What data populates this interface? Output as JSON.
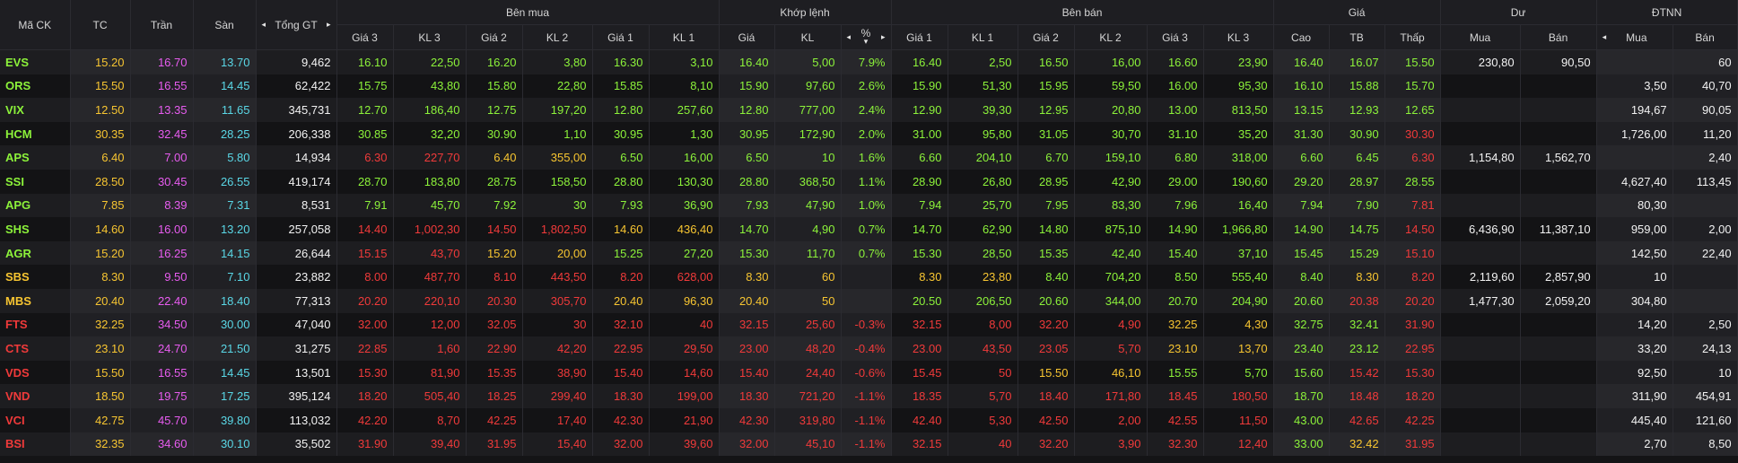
{
  "colors": {
    "up": "#8cf23a",
    "down": "#f03a3a",
    "ref": "#f7c531",
    "ceil": "#e85cf0",
    "floor": "#5ad7e6",
    "text": "#f2f2f2"
  },
  "headers": {
    "sym": "Mã CK",
    "tc": "TC",
    "tran": "Trần",
    "san": "Sàn",
    "tong": "Tổng GT",
    "benmua": "Bên mua",
    "khop": "Khớp lệnh",
    "benban": "Bên bán",
    "gia": "Giá",
    "du": "Dư",
    "dtnn": "ĐTNN",
    "gia3": "Giá 3",
    "kl3": "KL 3",
    "gia2": "Giá 2",
    "kl2": "KL 2",
    "gia1": "Giá 1",
    "kl1": "KL 1",
    "kgia": "Giá",
    "kkl": "KL",
    "kpct": "%",
    "cao": "Cao",
    "tb": "TB",
    "thap": "Thấp",
    "mua": "Mua",
    "ban": "Bán",
    "nmua": "Mua",
    "nban": "Bán",
    "arrow_left": "◂",
    "arrow_right": "▸",
    "arrow_down": "▾"
  },
  "rows": [
    {
      "s": "EVS",
      "tc": "15.20",
      "tran": "16.70",
      "san": "13.70",
      "tong": "9,462",
      "bp3": "16.10",
      "bv3": "22,50",
      "bp2": "16.20",
      "bv2": "3,80",
      "bp1": "16.30",
      "bv1": "3,10",
      "mp": "16.40",
      "mv": "5,00",
      "pct": "7.9%",
      "sp1": "16.40",
      "sv1": "2,50",
      "sp2": "16.50",
      "sv2": "16,00",
      "sp3": "16.60",
      "sv3": "23,90",
      "hi": "16.40",
      "avg": "16.07",
      "lo": "15.50",
      "dm": "230,80",
      "db": "90,50",
      "fm": "",
      "fb": "60",
      "c": {
        "s": "u",
        "bp3": "u",
        "bv3": "u",
        "bp2": "u",
        "bv2": "u",
        "bp1": "u",
        "bv1": "u",
        "mp": "u",
        "mv": "u",
        "pct": "u",
        "sp1": "u",
        "sv1": "u",
        "sp2": "u",
        "sv2": "u",
        "sp3": "u",
        "sv3": "u",
        "hi": "u",
        "avg": "u",
        "lo": "u"
      }
    },
    {
      "s": "ORS",
      "tc": "15.50",
      "tran": "16.55",
      "san": "14.45",
      "tong": "62,422",
      "bp3": "15.75",
      "bv3": "43,80",
      "bp2": "15.80",
      "bv2": "22,80",
      "bp1": "15.85",
      "bv1": "8,10",
      "mp": "15.90",
      "mv": "97,60",
      "pct": "2.6%",
      "sp1": "15.90",
      "sv1": "51,30",
      "sp2": "15.95",
      "sv2": "59,50",
      "sp3": "16.00",
      "sv3": "95,30",
      "hi": "16.10",
      "avg": "15.88",
      "lo": "15.70",
      "dm": "",
      "db": "",
      "fm": "3,50",
      "fb": "40,70",
      "c": {
        "s": "u",
        "bp3": "u",
        "bv3": "u",
        "bp2": "u",
        "bv2": "u",
        "bp1": "u",
        "bv1": "u",
        "mp": "u",
        "mv": "u",
        "pct": "u",
        "sp1": "u",
        "sv1": "u",
        "sp2": "u",
        "sv2": "u",
        "sp3": "u",
        "sv3": "u",
        "hi": "u",
        "avg": "u",
        "lo": "u"
      }
    },
    {
      "s": "VIX",
      "tc": "12.50",
      "tran": "13.35",
      "san": "11.65",
      "tong": "345,731",
      "bp3": "12.70",
      "bv3": "186,40",
      "bp2": "12.75",
      "bv2": "197,20",
      "bp1": "12.80",
      "bv1": "257,60",
      "mp": "12.80",
      "mv": "777,00",
      "pct": "2.4%",
      "sp1": "12.90",
      "sv1": "39,30",
      "sp2": "12.95",
      "sv2": "20,80",
      "sp3": "13.00",
      "sv3": "813,50",
      "hi": "13.15",
      "avg": "12.93",
      "lo": "12.65",
      "dm": "",
      "db": "",
      "fm": "194,67",
      "fb": "90,05",
      "c": {
        "s": "u",
        "bp3": "u",
        "bv3": "u",
        "bp2": "u",
        "bv2": "u",
        "bp1": "u",
        "bv1": "u",
        "mp": "u",
        "mv": "u",
        "pct": "u",
        "sp1": "u",
        "sv1": "u",
        "sp2": "u",
        "sv2": "u",
        "sp3": "u",
        "sv3": "u",
        "hi": "u",
        "avg": "u",
        "lo": "u"
      }
    },
    {
      "s": "HCM",
      "tc": "30.35",
      "tran": "32.45",
      "san": "28.25",
      "tong": "206,338",
      "bp3": "30.85",
      "bv3": "32,20",
      "bp2": "30.90",
      "bv2": "1,10",
      "bp1": "30.95",
      "bv1": "1,30",
      "mp": "30.95",
      "mv": "172,90",
      "pct": "2.0%",
      "sp1": "31.00",
      "sv1": "95,80",
      "sp2": "31.05",
      "sv2": "30,70",
      "sp3": "31.10",
      "sv3": "35,20",
      "hi": "31.30",
      "avg": "30.90",
      "lo": "30.30",
      "dm": "",
      "db": "",
      "fm": "1,726,00",
      "fb": "11,20",
      "c": {
        "s": "u",
        "bp3": "u",
        "bv3": "u",
        "bp2": "u",
        "bv2": "u",
        "bp1": "u",
        "bv1": "u",
        "mp": "u",
        "mv": "u",
        "pct": "u",
        "sp1": "u",
        "sv1": "u",
        "sp2": "u",
        "sv2": "u",
        "sp3": "u",
        "sv3": "u",
        "hi": "u",
        "avg": "u",
        "lo": "d"
      }
    },
    {
      "s": "APS",
      "tc": "6.40",
      "tran": "7.00",
      "san": "5.80",
      "tong": "14,934",
      "bp3": "6.30",
      "bv3": "227,70",
      "bp2": "6.40",
      "bv2": "355,00",
      "bp1": "6.50",
      "bv1": "16,00",
      "mp": "6.50",
      "mv": "10",
      "pct": "1.6%",
      "sp1": "6.60",
      "sv1": "204,10",
      "sp2": "6.70",
      "sv2": "159,10",
      "sp3": "6.80",
      "sv3": "318,00",
      "hi": "6.60",
      "avg": "6.45",
      "lo": "6.30",
      "dm": "1,154,80",
      "db": "1,562,70",
      "fm": "",
      "fb": "2,40",
      "c": {
        "s": "u",
        "bp3": "d",
        "bv3": "d",
        "bp2": "r",
        "bv2": "r",
        "bp1": "u",
        "bv1": "u",
        "mp": "u",
        "mv": "u",
        "pct": "u",
        "sp1": "u",
        "sv1": "u",
        "sp2": "u",
        "sv2": "u",
        "sp3": "u",
        "sv3": "u",
        "hi": "u",
        "avg": "u",
        "lo": "d"
      }
    },
    {
      "s": "SSI",
      "tc": "28.50",
      "tran": "30.45",
      "san": "26.55",
      "tong": "419,174",
      "bp3": "28.70",
      "bv3": "183,80",
      "bp2": "28.75",
      "bv2": "158,50",
      "bp1": "28.80",
      "bv1": "130,30",
      "mp": "28.80",
      "mv": "368,50",
      "pct": "1.1%",
      "sp1": "28.90",
      "sv1": "26,80",
      "sp2": "28.95",
      "sv2": "42,90",
      "sp3": "29.00",
      "sv3": "190,60",
      "hi": "29.20",
      "avg": "28.97",
      "lo": "28.55",
      "dm": "",
      "db": "",
      "fm": "4,627,40",
      "fb": "113,45",
      "c": {
        "s": "u",
        "bp3": "u",
        "bv3": "u",
        "bp2": "u",
        "bv2": "u",
        "bp1": "u",
        "bv1": "u",
        "mp": "u",
        "mv": "u",
        "pct": "u",
        "sp1": "u",
        "sv1": "u",
        "sp2": "u",
        "sv2": "u",
        "sp3": "u",
        "sv3": "u",
        "hi": "u",
        "avg": "u",
        "lo": "u"
      }
    },
    {
      "s": "APG",
      "tc": "7.85",
      "tran": "8.39",
      "san": "7.31",
      "tong": "8,531",
      "bp3": "7.91",
      "bv3": "45,70",
      "bp2": "7.92",
      "bv2": "30",
      "bp1": "7.93",
      "bv1": "36,90",
      "mp": "7.93",
      "mv": "47,90",
      "pct": "1.0%",
      "sp1": "7.94",
      "sv1": "25,70",
      "sp2": "7.95",
      "sv2": "83,30",
      "sp3": "7.96",
      "sv3": "16,40",
      "hi": "7.94",
      "avg": "7.90",
      "lo": "7.81",
      "dm": "",
      "db": "",
      "fm": "80,30",
      "fb": "",
      "c": {
        "s": "u",
        "bp3": "u",
        "bv3": "u",
        "bp2": "u",
        "bv2": "u",
        "bp1": "u",
        "bv1": "u",
        "mp": "u",
        "mv": "u",
        "pct": "u",
        "sp1": "u",
        "sv1": "u",
        "sp2": "u",
        "sv2": "u",
        "sp3": "u",
        "sv3": "u",
        "hi": "u",
        "avg": "u",
        "lo": "d"
      }
    },
    {
      "s": "SHS",
      "tc": "14.60",
      "tran": "16.00",
      "san": "13.20",
      "tong": "257,058",
      "bp3": "14.40",
      "bv3": "1,002,30",
      "bp2": "14.50",
      "bv2": "1,802,50",
      "bp1": "14.60",
      "bv1": "436,40",
      "mp": "14.70",
      "mv": "4,90",
      "pct": "0.7%",
      "sp1": "14.70",
      "sv1": "62,90",
      "sp2": "14.80",
      "sv2": "875,10",
      "sp3": "14.90",
      "sv3": "1,966,80",
      "hi": "14.90",
      "avg": "14.75",
      "lo": "14.50",
      "dm": "6,436,90",
      "db": "11,387,10",
      "fm": "959,00",
      "fb": "2,00",
      "c": {
        "s": "u",
        "bp3": "d",
        "bv3": "d",
        "bp2": "d",
        "bv2": "d",
        "bp1": "r",
        "bv1": "r",
        "mp": "u",
        "mv": "u",
        "pct": "u",
        "sp1": "u",
        "sv1": "u",
        "sp2": "u",
        "sv2": "u",
        "sp3": "u",
        "sv3": "u",
        "hi": "u",
        "avg": "u",
        "lo": "d"
      }
    },
    {
      "s": "AGR",
      "tc": "15.20",
      "tran": "16.25",
      "san": "14.15",
      "tong": "26,644",
      "bp3": "15.15",
      "bv3": "43,70",
      "bp2": "15.20",
      "bv2": "20,00",
      "bp1": "15.25",
      "bv1": "27,20",
      "mp": "15.30",
      "mv": "11,70",
      "pct": "0.7%",
      "sp1": "15.30",
      "sv1": "28,50",
      "sp2": "15.35",
      "sv2": "42,40",
      "sp3": "15.40",
      "sv3": "37,10",
      "hi": "15.45",
      "avg": "15.29",
      "lo": "15.10",
      "dm": "",
      "db": "",
      "fm": "142,50",
      "fb": "22,40",
      "c": {
        "s": "u",
        "bp3": "d",
        "bv3": "d",
        "bp2": "r",
        "bv2": "r",
        "bp1": "u",
        "bv1": "u",
        "mp": "u",
        "mv": "u",
        "pct": "u",
        "sp1": "u",
        "sv1": "u",
        "sp2": "u",
        "sv2": "u",
        "sp3": "u",
        "sv3": "u",
        "hi": "u",
        "avg": "u",
        "lo": "d"
      }
    },
    {
      "s": "SBS",
      "tc": "8.30",
      "tran": "9.50",
      "san": "7.10",
      "tong": "23,882",
      "bp3": "8.00",
      "bv3": "487,70",
      "bp2": "8.10",
      "bv2": "443,50",
      "bp1": "8.20",
      "bv1": "628,00",
      "mp": "8.30",
      "mv": "60",
      "pct": "",
      "sp1": "8.30",
      "sv1": "23,80",
      "sp2": "8.40",
      "sv2": "704,20",
      "sp3": "8.50",
      "sv3": "555,40",
      "hi": "8.40",
      "avg": "8.30",
      "lo": "8.20",
      "dm": "2,119,60",
      "db": "2,857,90",
      "fm": "10",
      "fb": "",
      "c": {
        "s": "r",
        "bp3": "d",
        "bv3": "d",
        "bp2": "d",
        "bv2": "d",
        "bp1": "d",
        "bv1": "d",
        "mp": "r",
        "mv": "r",
        "pct": "r",
        "sp1": "r",
        "sv1": "r",
        "sp2": "u",
        "sv2": "u",
        "sp3": "u",
        "sv3": "u",
        "hi": "u",
        "avg": "r",
        "lo": "d"
      }
    },
    {
      "s": "MBS",
      "tc": "20.40",
      "tran": "22.40",
      "san": "18.40",
      "tong": "77,313",
      "bp3": "20.20",
      "bv3": "220,10",
      "bp2": "20.30",
      "bv2": "305,70",
      "bp1": "20.40",
      "bv1": "96,30",
      "mp": "20.40",
      "mv": "50",
      "pct": "",
      "sp1": "20.50",
      "sv1": "206,50",
      "sp2": "20.60",
      "sv2": "344,00",
      "sp3": "20.70",
      "sv3": "204,90",
      "hi": "20.60",
      "avg": "20.38",
      "lo": "20.20",
      "dm": "1,477,30",
      "db": "2,059,20",
      "fm": "304,80",
      "fb": "",
      "c": {
        "s": "r",
        "bp3": "d",
        "bv3": "d",
        "bp2": "d",
        "bv2": "d",
        "bp1": "r",
        "bv1": "r",
        "mp": "r",
        "mv": "r",
        "pct": "r",
        "sp1": "u",
        "sv1": "u",
        "sp2": "u",
        "sv2": "u",
        "sp3": "u",
        "sv3": "u",
        "hi": "u",
        "avg": "d",
        "lo": "d"
      }
    },
    {
      "s": "FTS",
      "tc": "32.25",
      "tran": "34.50",
      "san": "30.00",
      "tong": "47,040",
      "bp3": "32.00",
      "bv3": "12,00",
      "bp2": "32.05",
      "bv2": "30",
      "bp1": "32.10",
      "bv1": "40",
      "mp": "32.15",
      "mv": "25,60",
      "pct": "-0.3%",
      "sp1": "32.15",
      "sv1": "8,00",
      "sp2": "32.20",
      "sv2": "4,90",
      "sp3": "32.25",
      "sv3": "4,30",
      "hi": "32.75",
      "avg": "32.41",
      "lo": "31.90",
      "dm": "",
      "db": "",
      "fm": "14,20",
      "fb": "2,50",
      "c": {
        "s": "d",
        "bp3": "d",
        "bv3": "d",
        "bp2": "d",
        "bv2": "d",
        "bp1": "d",
        "bv1": "d",
        "mp": "d",
        "mv": "d",
        "pct": "d",
        "sp1": "d",
        "sv1": "d",
        "sp2": "d",
        "sv2": "d",
        "sp3": "r",
        "sv3": "r",
        "hi": "u",
        "avg": "u",
        "lo": "d"
      }
    },
    {
      "s": "CTS",
      "tc": "23.10",
      "tran": "24.70",
      "san": "21.50",
      "tong": "31,275",
      "bp3": "22.85",
      "bv3": "1,60",
      "bp2": "22.90",
      "bv2": "42,20",
      "bp1": "22.95",
      "bv1": "29,50",
      "mp": "23.00",
      "mv": "48,20",
      "pct": "-0.4%",
      "sp1": "23.00",
      "sv1": "43,50",
      "sp2": "23.05",
      "sv2": "5,70",
      "sp3": "23.10",
      "sv3": "13,70",
      "hi": "23.40",
      "avg": "23.12",
      "lo": "22.95",
      "dm": "",
      "db": "",
      "fm": "33,20",
      "fb": "24,13",
      "c": {
        "s": "d",
        "bp3": "d",
        "bv3": "d",
        "bp2": "d",
        "bv2": "d",
        "bp1": "d",
        "bv1": "d",
        "mp": "d",
        "mv": "d",
        "pct": "d",
        "sp1": "d",
        "sv1": "d",
        "sp2": "d",
        "sv2": "d",
        "sp3": "r",
        "sv3": "r",
        "hi": "u",
        "avg": "u",
        "lo": "d"
      }
    },
    {
      "s": "VDS",
      "tc": "15.50",
      "tran": "16.55",
      "san": "14.45",
      "tong": "13,501",
      "bp3": "15.30",
      "bv3": "81,90",
      "bp2": "15.35",
      "bv2": "38,90",
      "bp1": "15.40",
      "bv1": "14,60",
      "mp": "15.40",
      "mv": "24,40",
      "pct": "-0.6%",
      "sp1": "15.45",
      "sv1": "50",
      "sp2": "15.50",
      "sv2": "46,10",
      "sp3": "15.55",
      "sv3": "5,70",
      "hi": "15.60",
      "avg": "15.42",
      "lo": "15.30",
      "dm": "",
      "db": "",
      "fm": "92,50",
      "fb": "10",
      "c": {
        "s": "d",
        "bp3": "d",
        "bv3": "d",
        "bp2": "d",
        "bv2": "d",
        "bp1": "d",
        "bv1": "d",
        "mp": "d",
        "mv": "d",
        "pct": "d",
        "sp1": "d",
        "sv1": "d",
        "sp2": "r",
        "sv2": "r",
        "sp3": "u",
        "sv3": "u",
        "hi": "u",
        "avg": "d",
        "lo": "d"
      }
    },
    {
      "s": "VND",
      "tc": "18.50",
      "tran": "19.75",
      "san": "17.25",
      "tong": "395,124",
      "bp3": "18.20",
      "bv3": "505,40",
      "bp2": "18.25",
      "bv2": "299,40",
      "bp1": "18.30",
      "bv1": "199,00",
      "mp": "18.30",
      "mv": "721,20",
      "pct": "-1.1%",
      "sp1": "18.35",
      "sv1": "5,70",
      "sp2": "18.40",
      "sv2": "171,80",
      "sp3": "18.45",
      "sv3": "180,50",
      "hi": "18.70",
      "avg": "18.48",
      "lo": "18.20",
      "dm": "",
      "db": "",
      "fm": "311,90",
      "fb": "454,91",
      "c": {
        "s": "d",
        "bp3": "d",
        "bv3": "d",
        "bp2": "d",
        "bv2": "d",
        "bp1": "d",
        "bv1": "d",
        "mp": "d",
        "mv": "d",
        "pct": "d",
        "sp1": "d",
        "sv1": "d",
        "sp2": "d",
        "sv2": "d",
        "sp3": "d",
        "sv3": "d",
        "hi": "u",
        "avg": "d",
        "lo": "d"
      }
    },
    {
      "s": "VCI",
      "tc": "42.75",
      "tran": "45.70",
      "san": "39.80",
      "tong": "113,032",
      "bp3": "42.20",
      "bv3": "8,70",
      "bp2": "42.25",
      "bv2": "17,40",
      "bp1": "42.30",
      "bv1": "21,90",
      "mp": "42.30",
      "mv": "319,80",
      "pct": "-1.1%",
      "sp1": "42.40",
      "sv1": "5,30",
      "sp2": "42.50",
      "sv2": "2,00",
      "sp3": "42.55",
      "sv3": "11,50",
      "hi": "43.00",
      "avg": "42.65",
      "lo": "42.25",
      "dm": "",
      "db": "",
      "fm": "445,40",
      "fb": "121,60",
      "c": {
        "s": "d",
        "bp3": "d",
        "bv3": "d",
        "bp2": "d",
        "bv2": "d",
        "bp1": "d",
        "bv1": "d",
        "mp": "d",
        "mv": "d",
        "pct": "d",
        "sp1": "d",
        "sv1": "d",
        "sp2": "d",
        "sv2": "d",
        "sp3": "d",
        "sv3": "d",
        "hi": "u",
        "avg": "d",
        "lo": "d"
      }
    },
    {
      "s": "BSI",
      "tc": "32.35",
      "tran": "34.60",
      "san": "30.10",
      "tong": "35,502",
      "bp3": "31.90",
      "bv3": "39,40",
      "bp2": "31.95",
      "bv2": "15,40",
      "bp1": "32.00",
      "bv1": "39,60",
      "mp": "32.00",
      "mv": "45,10",
      "pct": "-1.1%",
      "sp1": "32.15",
      "sv1": "40",
      "sp2": "32.20",
      "sv2": "3,90",
      "sp3": "32.30",
      "sv3": "12,40",
      "hi": "33.00",
      "avg": "32.42",
      "lo": "31.95",
      "dm": "",
      "db": "",
      "fm": "2,70",
      "fb": "8,50",
      "c": {
        "s": "d",
        "bp3": "d",
        "bv3": "d",
        "bp2": "d",
        "bv2": "d",
        "bp1": "d",
        "bv1": "d",
        "mp": "d",
        "mv": "d",
        "pct": "d",
        "sp1": "d",
        "sv1": "d",
        "sp2": "d",
        "sv2": "d",
        "sp3": "d",
        "sv3": "d",
        "hi": "u",
        "avg": "r",
        "lo": "d"
      }
    }
  ]
}
